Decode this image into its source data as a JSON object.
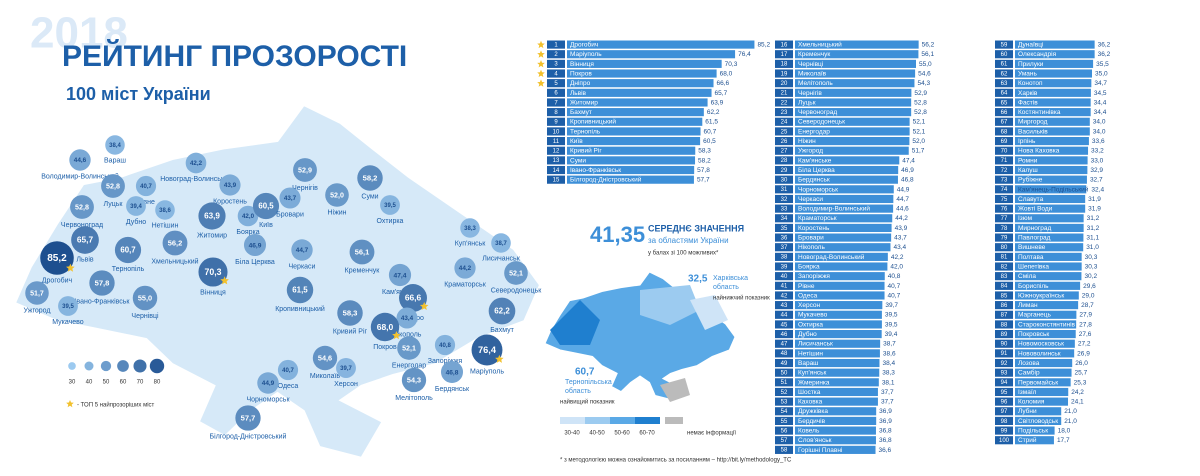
{
  "header": {
    "watermark": "2018",
    "title": "РЕЙТИНГ ПРОЗОРОСТІ",
    "subtitle": "100 міст України"
  },
  "map_legend": {
    "sizes": [
      30,
      40,
      50,
      60,
      70,
      80
    ],
    "top5_note": "- ТОП 5 найпрозоріших міст"
  },
  "average": {
    "value": "41,35",
    "title": "СЕРЕДНЄ ЗНАЧЕННЯ",
    "subtitle": "за областями України",
    "note": "у балах зі 100 можливих*"
  },
  "lowest": {
    "value": "32,5",
    "region": [
      "Харківська",
      "область"
    ],
    "label": "найнижчий показник"
  },
  "highest": {
    "value": "60,7",
    "region": [
      "Тернопільська",
      "область"
    ],
    "label": "найвищий показник"
  },
  "oblast_legend": [
    "30-40",
    "40-50",
    "50-60",
    "60-70",
    "немає інформації"
  ],
  "footnote": "* з методологією можна ознайомитись за посиланням – http://bit.ly/methodology_TC",
  "ranking": {
    "rows": [
      {
        "rank": 1,
        "city": "Дрогобич",
        "value": 85.2,
        "label": "85,2"
      },
      {
        "rank": 2,
        "city": "Маріуполь",
        "value": 76.4,
        "label": "76,4"
      },
      {
        "rank": 3,
        "city": "Вінниця",
        "value": 70.3,
        "label": "70,3"
      },
      {
        "rank": 4,
        "city": "Покров",
        "value": 68.0,
        "label": "68,0"
      },
      {
        "rank": 5,
        "city": "Дніпро",
        "value": 66.6,
        "label": "66,6"
      },
      {
        "rank": 6,
        "city": "Львів",
        "value": 65.7,
        "label": "65,7"
      },
      {
        "rank": 7,
        "city": "Житомир",
        "value": 63.9,
        "label": "63,9"
      },
      {
        "rank": 8,
        "city": "Бахмут",
        "value": 62.2,
        "label": "62,2"
      },
      {
        "rank": 9,
        "city": "Кропивницький",
        "value": 61.5,
        "label": "61,5"
      },
      {
        "rank": 10,
        "city": "Тернопіль",
        "value": 60.7,
        "label": "60,7"
      },
      {
        "rank": 11,
        "city": "Київ",
        "value": 60.5,
        "label": "60,5"
      },
      {
        "rank": 12,
        "city": "Кривий Ріг",
        "value": 58.3,
        "label": "58,3"
      },
      {
        "rank": 13,
        "city": "Суми",
        "value": 58.2,
        "label": "58,2"
      },
      {
        "rank": 14,
        "city": "Івано-Франківськ",
        "value": 57.8,
        "label": "57,8"
      },
      {
        "rank": 15,
        "city": "Білгород-Дністровський",
        "value": 57.7,
        "label": "57,7"
      },
      {
        "rank": 16,
        "city": "Хмельницький",
        "value": 56.2,
        "label": "56,2"
      },
      {
        "rank": 17,
        "city": "Кременчук",
        "value": 56.1,
        "label": "56,1"
      },
      {
        "rank": 18,
        "city": "Чернівці",
        "value": 55.0,
        "label": "55,0"
      },
      {
        "rank": 19,
        "city": "Миколаїв",
        "value": 54.6,
        "label": "54,6"
      },
      {
        "rank": 20,
        "city": "Мелітополь",
        "value": 54.3,
        "label": "54,3"
      },
      {
        "rank": 21,
        "city": "Чернігів",
        "value": 52.9,
        "label": "52,9"
      },
      {
        "rank": 22,
        "city": "Луцьк",
        "value": 52.8,
        "label": "52,8"
      },
      {
        "rank": 23,
        "city": "Червоноград",
        "value": 52.8,
        "label": "52,8"
      },
      {
        "rank": 24,
        "city": "Северодонецьк",
        "value": 52.1,
        "label": "52,1"
      },
      {
        "rank": 25,
        "city": "Енергодар",
        "value": 52.1,
        "label": "52,1"
      },
      {
        "rank": 26,
        "city": "Ніжин",
        "value": 52.0,
        "label": "52,0"
      },
      {
        "rank": 27,
        "city": "Ужгород",
        "value": 51.7,
        "label": "51,7"
      },
      {
        "rank": 28,
        "city": "Кам'янське",
        "value": 47.4,
        "label": "47,4"
      },
      {
        "rank": 29,
        "city": "Біла Церква",
        "value": 46.9,
        "label": "46,9"
      },
      {
        "rank": 30,
        "city": "Бердянськ",
        "value": 46.8,
        "label": "46,8"
      },
      {
        "rank": 31,
        "city": "Чорноморськ",
        "value": 44.9,
        "label": "44,9"
      },
      {
        "rank": 32,
        "city": "Черкаси",
        "value": 44.7,
        "label": "44,7"
      },
      {
        "rank": 33,
        "city": "Володимир-Волинський",
        "value": 44.6,
        "label": "44,6"
      },
      {
        "rank": 34,
        "city": "Краматорськ",
        "value": 44.2,
        "label": "44,2"
      },
      {
        "rank": 35,
        "city": "Коростень",
        "value": 43.9,
        "label": "43,9"
      },
      {
        "rank": 36,
        "city": "Бровари",
        "value": 43.7,
        "label": "43,7"
      },
      {
        "rank": 37,
        "city": "Нікополь",
        "value": 43.4,
        "label": "43,4"
      },
      {
        "rank": 38,
        "city": "Новоград-Волинський",
        "value": 42.2,
        "label": "42,2"
      },
      {
        "rank": 39,
        "city": "Боярка",
        "value": 42.0,
        "label": "42,0"
      },
      {
        "rank": 40,
        "city": "Запоріжжя",
        "value": 40.8,
        "label": "40,8"
      },
      {
        "rank": 41,
        "city": "Рівне",
        "value": 40.7,
        "label": "40,7"
      },
      {
        "rank": 42,
        "city": "Одеса",
        "value": 40.7,
        "label": "40,7"
      },
      {
        "rank": 43,
        "city": "Херсон",
        "value": 39.7,
        "label": "39,7"
      },
      {
        "rank": 44,
        "city": "Мукачево",
        "value": 39.5,
        "label": "39,5"
      },
      {
        "rank": 45,
        "city": "Охтирка",
        "value": 39.5,
        "label": "39,5"
      },
      {
        "rank": 46,
        "city": "Дубно",
        "value": 39.4,
        "label": "39,4"
      },
      {
        "rank": 47,
        "city": "Лисичанськ",
        "value": 38.7,
        "label": "38,7"
      },
      {
        "rank": 48,
        "city": "Нетішин",
        "value": 38.6,
        "label": "38,6"
      },
      {
        "rank": 49,
        "city": "Вараш",
        "value": 38.4,
        "label": "38,4"
      },
      {
        "rank": 50,
        "city": "Куп'янськ",
        "value": 38.3,
        "label": "38,3"
      },
      {
        "rank": 51,
        "city": "Жмеринка",
        "value": 38.1,
        "label": "38,1"
      },
      {
        "rank": 52,
        "city": "Шостка",
        "value": 37.7,
        "label": "37,7"
      },
      {
        "rank": 53,
        "city": "Каховка",
        "value": 37.7,
        "label": "37,7"
      },
      {
        "rank": 54,
        "city": "Дружківка",
        "value": 36.9,
        "label": "36,9"
      },
      {
        "rank": 55,
        "city": "Бердичів",
        "value": 36.9,
        "label": "36,9"
      },
      {
        "rank": 56,
        "city": "Ковель",
        "value": 36.8,
        "label": "36,8"
      },
      {
        "rank": 57,
        "city": "Слов'янськ",
        "value": 36.8,
        "label": "36,8"
      },
      {
        "rank": 58,
        "city": "Горішні Плавні",
        "value": 36.6,
        "label": "36,6"
      },
      {
        "rank": 59,
        "city": "Дунаївці",
        "value": 36.2,
        "label": "36,2"
      },
      {
        "rank": 60,
        "city": "Олександрія",
        "value": 36.2,
        "label": "36,2"
      },
      {
        "rank": 61,
        "city": "Прилуки",
        "value": 35.5,
        "label": "35,5"
      },
      {
        "rank": 62,
        "city": "Умань",
        "value": 35.0,
        "label": "35,0"
      },
      {
        "rank": 63,
        "city": "Конотоп",
        "value": 34.7,
        "label": "34,7"
      },
      {
        "rank": 64,
        "city": "Харків",
        "value": 34.5,
        "label": "34,5"
      },
      {
        "rank": 65,
        "city": "Фастів",
        "value": 34.4,
        "label": "34,4"
      },
      {
        "rank": 66,
        "city": "Костянтинівка",
        "value": 34.4,
        "label": "34,4"
      },
      {
        "rank": 67,
        "city": "Миргород",
        "value": 34.0,
        "label": "34,0"
      },
      {
        "rank": 68,
        "city": "Васильків",
        "value": 34.0,
        "label": "34,0"
      },
      {
        "rank": 69,
        "city": "Ірпінь",
        "value": 33.6,
        "label": "33,6"
      },
      {
        "rank": 70,
        "city": "Нова Каховка",
        "value": 33.2,
        "label": "33,2"
      },
      {
        "rank": 71,
        "city": "Ромни",
        "value": 33.0,
        "label": "33,0"
      },
      {
        "rank": 72,
        "city": "Калуш",
        "value": 32.9,
        "label": "32,9"
      },
      {
        "rank": 73,
        "city": "Рубіжне",
        "value": 32.7,
        "label": "32,7"
      },
      {
        "rank": 74,
        "city": "Кам'янець-Подільський",
        "value": 32.4,
        "label": "32,4"
      },
      {
        "rank": 75,
        "city": "Славута",
        "value": 31.9,
        "label": "31,9"
      },
      {
        "rank": 76,
        "city": "Жовті Води",
        "value": 31.9,
        "label": "31,9"
      },
      {
        "rank": 77,
        "city": "Ізюм",
        "value": 31.2,
        "label": "31,2"
      },
      {
        "rank": 78,
        "city": "Мирноград",
        "value": 31.2,
        "label": "31,2"
      },
      {
        "rank": 79,
        "city": "Павлоград",
        "value": 31.1,
        "label": "31,1"
      },
      {
        "rank": 80,
        "city": "Вишневе",
        "value": 31.0,
        "label": "31,0"
      },
      {
        "rank": 81,
        "city": "Полтава",
        "value": 30.3,
        "label": "30,3"
      },
      {
        "rank": 82,
        "city": "Шепетівка",
        "value": 30.3,
        "label": "30,3"
      },
      {
        "rank": 83,
        "city": "Сміла",
        "value": 30.2,
        "label": "30,2"
      },
      {
        "rank": 84,
        "city": "Бориспіль",
        "value": 29.6,
        "label": "29,6"
      },
      {
        "rank": 85,
        "city": "Южноукраїнськ",
        "value": 29.0,
        "label": "29,0"
      },
      {
        "rank": 86,
        "city": "Лиман",
        "value": 28.7,
        "label": "28,7"
      },
      {
        "rank": 87,
        "city": "Марганець",
        "value": 27.9,
        "label": "27,9"
      },
      {
        "rank": 88,
        "city": "Староконстянтинів",
        "value": 27.8,
        "label": "27,8"
      },
      {
        "rank": 89,
        "city": "Покровськ",
        "value": 27.6,
        "label": "27,6"
      },
      {
        "rank": 90,
        "city": "Новомосковськ",
        "value": 27.2,
        "label": "27,2"
      },
      {
        "rank": 91,
        "city": "Нововолинськ",
        "value": 26.9,
        "label": "26,9"
      },
      {
        "rank": 92,
        "city": "Лозова",
        "value": 26.0,
        "label": "26,0"
      },
      {
        "rank": 93,
        "city": "Самбір",
        "value": 25.7,
        "label": "25,7"
      },
      {
        "rank": 94,
        "city": "Первомайськ",
        "value": 25.3,
        "label": "25,3"
      },
      {
        "rank": 95,
        "city": "Ізмаїл",
        "value": 24.2,
        "label": "24,2"
      },
      {
        "rank": 96,
        "city": "Коломия",
        "value": 24.1,
        "label": "24,1"
      },
      {
        "rank": 97,
        "city": "Лубни",
        "value": 21.0,
        "label": "21,0"
      },
      {
        "rank": 98,
        "city": "Світловодськ",
        "value": 21.0,
        "label": "21,0"
      },
      {
        "rank": 99,
        "city": "Подільськ",
        "value": 18.0,
        "label": "18,0"
      },
      {
        "rank": 100,
        "city": "Стрий",
        "value": 17.7,
        "label": "17,7"
      }
    ]
  }
}
